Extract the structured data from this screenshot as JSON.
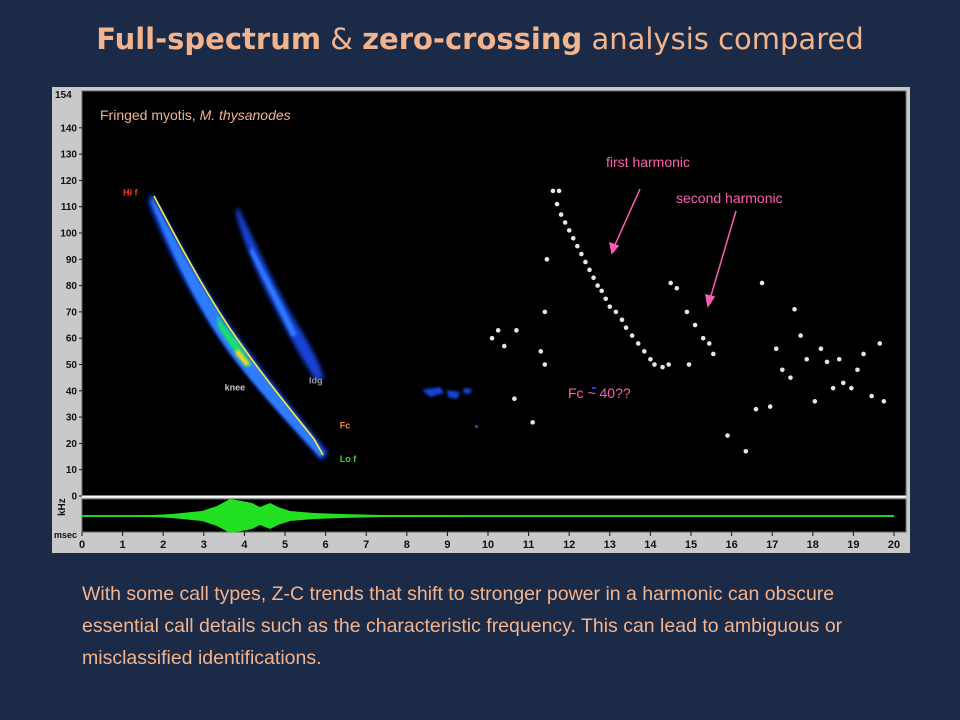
{
  "title": {
    "part1": "Full-spectrum",
    "part2": " & ",
    "part3": "zero-crossing",
    "part4": " analysis compared"
  },
  "caption": "With some call types, Z-C trends that shift to stronger power in a harmonic can obscure essential call details such as the characteristic frequency. This can lead to ambiguous or misclassified identifications.",
  "chart_data": {
    "type": "scatter",
    "species_label_prefix": "Fringed myotis, ",
    "species_label_italic": "M. thysanodes",
    "y_unit_label": "kHz",
    "x_unit_label": "msec",
    "xlim": [
      0,
      20
    ],
    "ylim": [
      0,
      154
    ],
    "x_ticks": [
      0,
      1,
      2,
      3,
      4,
      5,
      6,
      7,
      8,
      9,
      10,
      11,
      12,
      13,
      14,
      15,
      16,
      17,
      18,
      19,
      20
    ],
    "y_ticks": [
      0,
      10,
      20,
      30,
      40,
      50,
      60,
      70,
      80,
      90,
      100,
      110,
      120,
      130,
      140
    ],
    "y_top_label": "154",
    "call_markers": [
      {
        "label": "Hi f",
        "x": 1.75,
        "y": 115,
        "color": "#ff3a1a"
      },
      {
        "label": "knee",
        "x": 4.3,
        "y": 47,
        "color": "#c8c8c8"
      },
      {
        "label": "ldg",
        "x": 5.0,
        "y": 44,
        "color": "#9a9a9a"
      },
      {
        "label": "Fc",
        "x": 6.3,
        "y": 25,
        "color": "#ff8a1a"
      },
      {
        "label": "Lo f",
        "x": 6.3,
        "y": 16,
        "color": "#2edc2e"
      }
    ],
    "annotations": [
      {
        "label": "first harmonic",
        "color": "#ff5fb0"
      },
      {
        "label": "second harmonic",
        "color": "#ff5fb0"
      },
      {
        "label": "Fc ~ 40??",
        "color": "#ff5fb0"
      }
    ],
    "series": [
      {
        "name": "",
        "points": [
          [
            11.6,
            116
          ],
          [
            11.75,
            116
          ],
          [
            11.7,
            111
          ],
          [
            11.8,
            107
          ],
          [
            11.9,
            104
          ],
          [
            12.0,
            101
          ],
          [
            12.1,
            98
          ],
          [
            12.2,
            95
          ],
          [
            12.3,
            92
          ],
          [
            12.4,
            89
          ],
          [
            12.5,
            86
          ],
          [
            12.6,
            83
          ],
          [
            12.7,
            80
          ],
          [
            12.8,
            78
          ],
          [
            12.9,
            75
          ],
          [
            13.0,
            72
          ],
          [
            13.15,
            70
          ],
          [
            13.3,
            67
          ],
          [
            13.4,
            64
          ],
          [
            13.55,
            61
          ],
          [
            13.7,
            58
          ],
          [
            13.85,
            55
          ],
          [
            14.0,
            52
          ],
          [
            14.1,
            50
          ],
          [
            14.3,
            49
          ],
          [
            14.45,
            50
          ],
          [
            11.45,
            90
          ],
          [
            10.1,
            60
          ],
          [
            10.25,
            63
          ],
          [
            10.4,
            57
          ],
          [
            10.7,
            63
          ],
          [
            10.65,
            37
          ],
          [
            11.1,
            28
          ],
          [
            11.3,
            55
          ],
          [
            11.4,
            50
          ],
          [
            11.4,
            70
          ],
          [
            14.5,
            81
          ],
          [
            14.65,
            79
          ],
          [
            14.95,
            50
          ],
          [
            14.9,
            70
          ],
          [
            15.1,
            65
          ],
          [
            15.3,
            60
          ],
          [
            15.45,
            58
          ],
          [
            15.55,
            54
          ],
          [
            15.9,
            23
          ],
          [
            16.35,
            17
          ],
          [
            16.6,
            33
          ],
          [
            16.75,
            81
          ],
          [
            16.95,
            34
          ],
          [
            17.1,
            56
          ],
          [
            17.25,
            48
          ],
          [
            17.45,
            45
          ],
          [
            17.55,
            71
          ],
          [
            17.7,
            61
          ],
          [
            17.85,
            52
          ],
          [
            18.05,
            36
          ],
          [
            18.2,
            56
          ],
          [
            18.35,
            51
          ],
          [
            18.5,
            41
          ],
          [
            18.65,
            52
          ],
          [
            18.75,
            43
          ],
          [
            18.95,
            41
          ],
          [
            19.1,
            48
          ],
          [
            19.25,
            54
          ],
          [
            19.45,
            38
          ],
          [
            19.65,
            58
          ],
          [
            19.75,
            36
          ]
        ]
      }
    ]
  }
}
